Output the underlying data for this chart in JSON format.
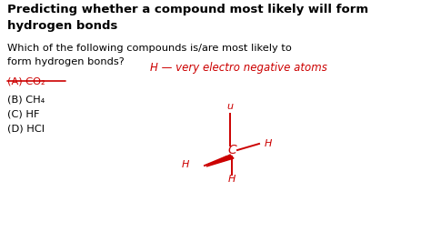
{
  "bg_color": "#ffffff",
  "title_line1": "Predicting whether a compound most likely will form",
  "title_line2": "hydrogen bonds",
  "question_line1": "Which of the following compounds is/are most likely to",
  "question_line2": "form hydrogen bonds?",
  "options": [
    "(A) CO₂",
    "(B) CH₄",
    "(C) HF",
    "(D) HCl"
  ],
  "annotation_text": "H — very electro negative atoms",
  "annotation_color": "#cc0000",
  "title_fontsize": 9.5,
  "question_fontsize": 8.2,
  "option_fontsize": 8.2,
  "annot_fontsize": 8.5,
  "diagram_fontsize": 8.0
}
